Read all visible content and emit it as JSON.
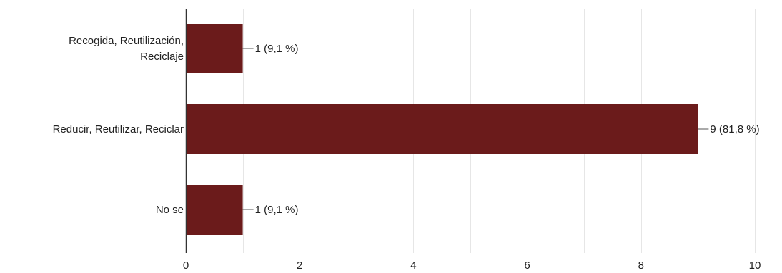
{
  "chart_data": {
    "type": "bar",
    "orientation": "horizontal",
    "categories": [
      [
        "Recogida, Reutilización,",
        "Reciclaje"
      ],
      [
        "Reducir, Reutilizar, Reciclar"
      ],
      [
        "No se"
      ]
    ],
    "values": [
      1,
      9,
      1
    ],
    "data_labels": [
      "1 (9,1 %)",
      "9 (81,8 %)",
      "1 (9,1 %)"
    ],
    "xlim": [
      0,
      10
    ],
    "xticks": [
      0,
      2,
      4,
      6,
      8,
      10
    ],
    "xtick_labels": [
      "0",
      "2",
      "4",
      "6",
      "8",
      "10"
    ],
    "grid": true,
    "legend": "none",
    "colors": {
      "bar": "#6b1b1b",
      "grid": "#e6e6e6",
      "axis": "#333333",
      "text": "#222222"
    }
  }
}
